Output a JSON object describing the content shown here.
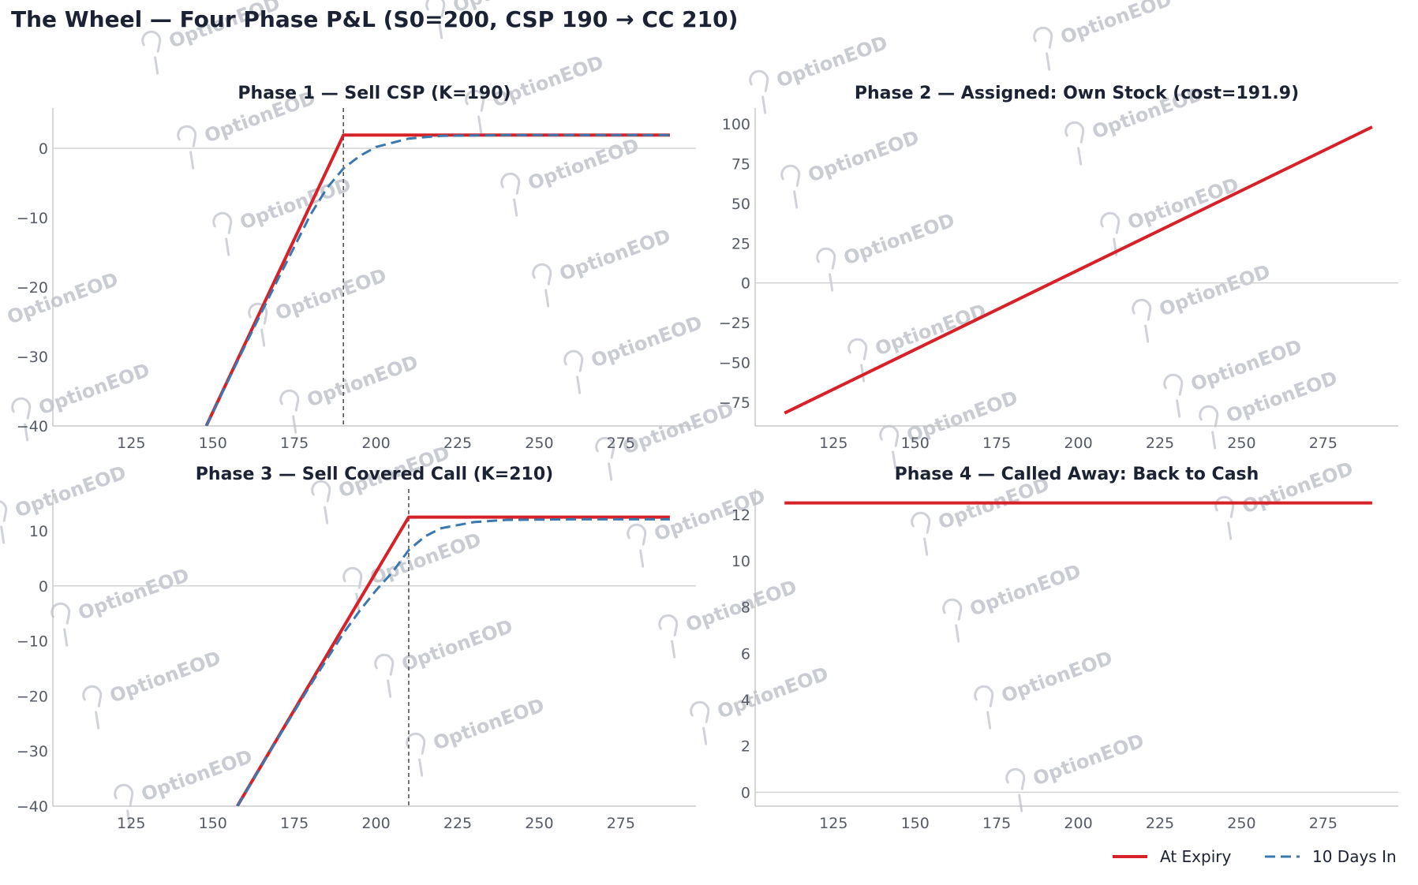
{
  "figure_title": "The Wheel — Four Phase P&L (S0=200, CSP 190 → CC 210)",
  "watermark": "OptionEOD",
  "colors": {
    "expiry": "#d62128",
    "days_in": "#3a78b0",
    "strike": "#555555",
    "zero": "#d0d0d0",
    "axis": "#bfbfbf",
    "title": "#1a2233",
    "tick": "#555b66"
  },
  "legend": {
    "position": "bottom-right",
    "items": [
      "At Expiry",
      "10 Days In"
    ]
  },
  "chart_data": [
    {
      "type": "line",
      "title": "Phase 1 — Sell CSP (K=190)",
      "xlabel": "",
      "ylabel": "",
      "xlim": [
        101,
        298
      ],
      "ylim": [
        -40,
        5.8
      ],
      "xticks": [
        125,
        150,
        175,
        200,
        225,
        250,
        275
      ],
      "xtick_labels": [
        "125",
        "150",
        "175",
        "200",
        "225",
        "250",
        "275"
      ],
      "yticks": [
        -40,
        -30,
        -20,
        -10,
        0
      ],
      "ytick_labels": [
        "−40",
        "−30",
        "−20",
        "−10",
        "0"
      ],
      "strike": 190,
      "series": [
        {
          "name": "At Expiry",
          "style": "solid",
          "x": [
            148,
            190,
            290
          ],
          "y": [
            -40,
            1.9,
            1.9
          ]
        },
        {
          "name": "10 Days In",
          "style": "dashed",
          "x": [
            148,
            160,
            170,
            180,
            185,
            190,
            195,
            200,
            210,
            220,
            240,
            290
          ],
          "y": [
            -40,
            -28.3,
            -18.8,
            -9.5,
            -5.7,
            -2.9,
            -1.1,
            0.2,
            1.4,
            1.8,
            1.9,
            1.9
          ]
        }
      ]
    },
    {
      "type": "line",
      "title": "Phase 2 — Assigned: Own Stock (cost=191.9)",
      "xlabel": "",
      "ylabel": "",
      "xlim": [
        101,
        298
      ],
      "ylim": [
        -90,
        110
      ],
      "xticks": [
        125,
        150,
        175,
        200,
        225,
        250,
        275
      ],
      "xtick_labels": [
        "125",
        "150",
        "175",
        "200",
        "225",
        "250",
        "275"
      ],
      "yticks": [
        -75,
        -50,
        -25,
        0,
        25,
        50,
        75,
        100
      ],
      "ytick_labels": [
        "−75",
        "−50",
        "−25",
        "0",
        "25",
        "50",
        "75",
        "100"
      ],
      "strike": null,
      "series": [
        {
          "name": "At Expiry",
          "style": "solid",
          "x": [
            110,
            290
          ],
          "y": [
            -81.9,
            98.1
          ]
        }
      ]
    },
    {
      "type": "line",
      "title": "Phase 3 — Sell Covered Call (K=210)",
      "xlabel": "",
      "ylabel": "",
      "xlim": [
        101,
        298
      ],
      "ylim": [
        -40,
        17.6
      ],
      "xticks": [
        125,
        150,
        175,
        200,
        225,
        250,
        275
      ],
      "xtick_labels": [
        "125",
        "150",
        "175",
        "200",
        "225",
        "250",
        "275"
      ],
      "yticks": [
        -40,
        -30,
        -20,
        -10,
        0,
        10
      ],
      "ytick_labels": [
        "−40",
        "−30",
        "−20",
        "−10",
        "0",
        "10"
      ],
      "strike": 210,
      "series": [
        {
          "name": "At Expiry",
          "style": "solid",
          "x": [
            157.5,
            210,
            290
          ],
          "y": [
            -40,
            12.5,
            12.5
          ]
        },
        {
          "name": "10 Days In",
          "style": "dashed",
          "x": [
            157.5,
            170,
            180,
            190,
            195,
            200,
            205,
            210,
            215,
            220,
            230,
            240,
            260,
            290
          ],
          "y": [
            -40,
            -27.6,
            -17.9,
            -8.6,
            -4.5,
            -0.8,
            2.5,
            6.5,
            9.0,
            10.5,
            11.6,
            12.0,
            12.1,
            12.1
          ]
        }
      ]
    },
    {
      "type": "line",
      "title": "Phase 4 — Called Away: Back to Cash",
      "xlabel": "",
      "ylabel": "",
      "xlim": [
        101,
        298
      ],
      "ylim": [
        -0.6,
        13.1
      ],
      "xticks": [
        125,
        150,
        175,
        200,
        225,
        250,
        275
      ],
      "xtick_labels": [
        "125",
        "150",
        "175",
        "200",
        "225",
        "250",
        "275"
      ],
      "yticks": [
        0,
        2,
        4,
        6,
        8,
        10,
        12
      ],
      "ytick_labels": [
        "0",
        "2",
        "4",
        "6",
        "8",
        "10",
        "12"
      ],
      "strike": null,
      "series": [
        {
          "name": "At Expiry",
          "style": "solid",
          "x": [
            110,
            290
          ],
          "y": [
            12.5,
            12.5
          ]
        }
      ]
    }
  ]
}
